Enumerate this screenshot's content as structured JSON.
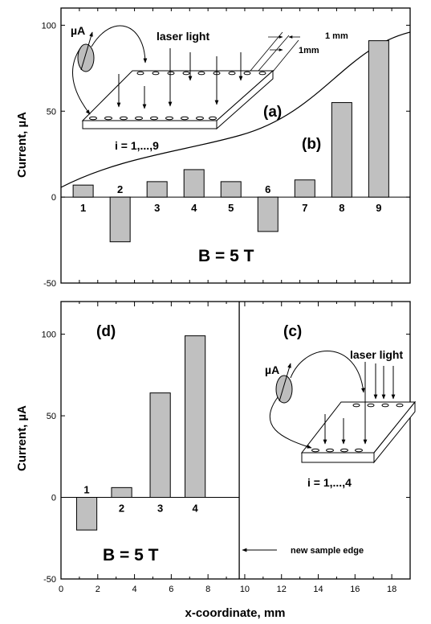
{
  "chart_data": [
    {
      "panel": "top",
      "type": "bar",
      "categories": [
        "1",
        "2",
        "3",
        "4",
        "5",
        "6",
        "7",
        "8",
        "9"
      ],
      "values": [
        7,
        -26,
        9,
        16,
        9,
        -20,
        10,
        55,
        91
      ],
      "bar_labels": [
        "1",
        "2",
        "3",
        "4",
        "5",
        "6",
        "7",
        "8",
        "9"
      ],
      "ylabel": "Current, µA",
      "ylim": [
        -50,
        110
      ],
      "yticks": [
        -50,
        0,
        50,
        100
      ],
      "panel_labels": [
        "(a)",
        "(b)"
      ],
      "field_label": "B = 5 T",
      "curve": "smooth sigmoid-like curve rising from ~6 µA at left to ~104 µA at right",
      "inset": {
        "laser": "laser light",
        "meter": "µA",
        "dim1": "1 mm",
        "dim2": "1mm",
        "index": "i = 1,...,9"
      }
    },
    {
      "panel": "bottom",
      "type": "bar",
      "categories": [
        "1",
        "2",
        "3",
        "4"
      ],
      "values": [
        -20,
        6,
        64,
        99
      ],
      "bar_labels": [
        "1",
        "2",
        "3",
        "4"
      ],
      "xlabel": "x-coordinate, mm",
      "ylabel": "Current, µA",
      "xlim": [
        0,
        19
      ],
      "xticks": [
        0,
        2,
        4,
        6,
        8,
        10,
        12,
        14,
        16,
        18
      ],
      "ylim": [
        -50,
        120
      ],
      "yticks": [
        -50,
        0,
        50,
        100
      ],
      "panel_labels": [
        "(d)",
        "(c)"
      ],
      "field_label": "B = 5 T",
      "edge_label": "new sample edge",
      "inset": {
        "laser": "laser light",
        "meter": "µA",
        "index": "i = 1,...,4"
      }
    }
  ]
}
